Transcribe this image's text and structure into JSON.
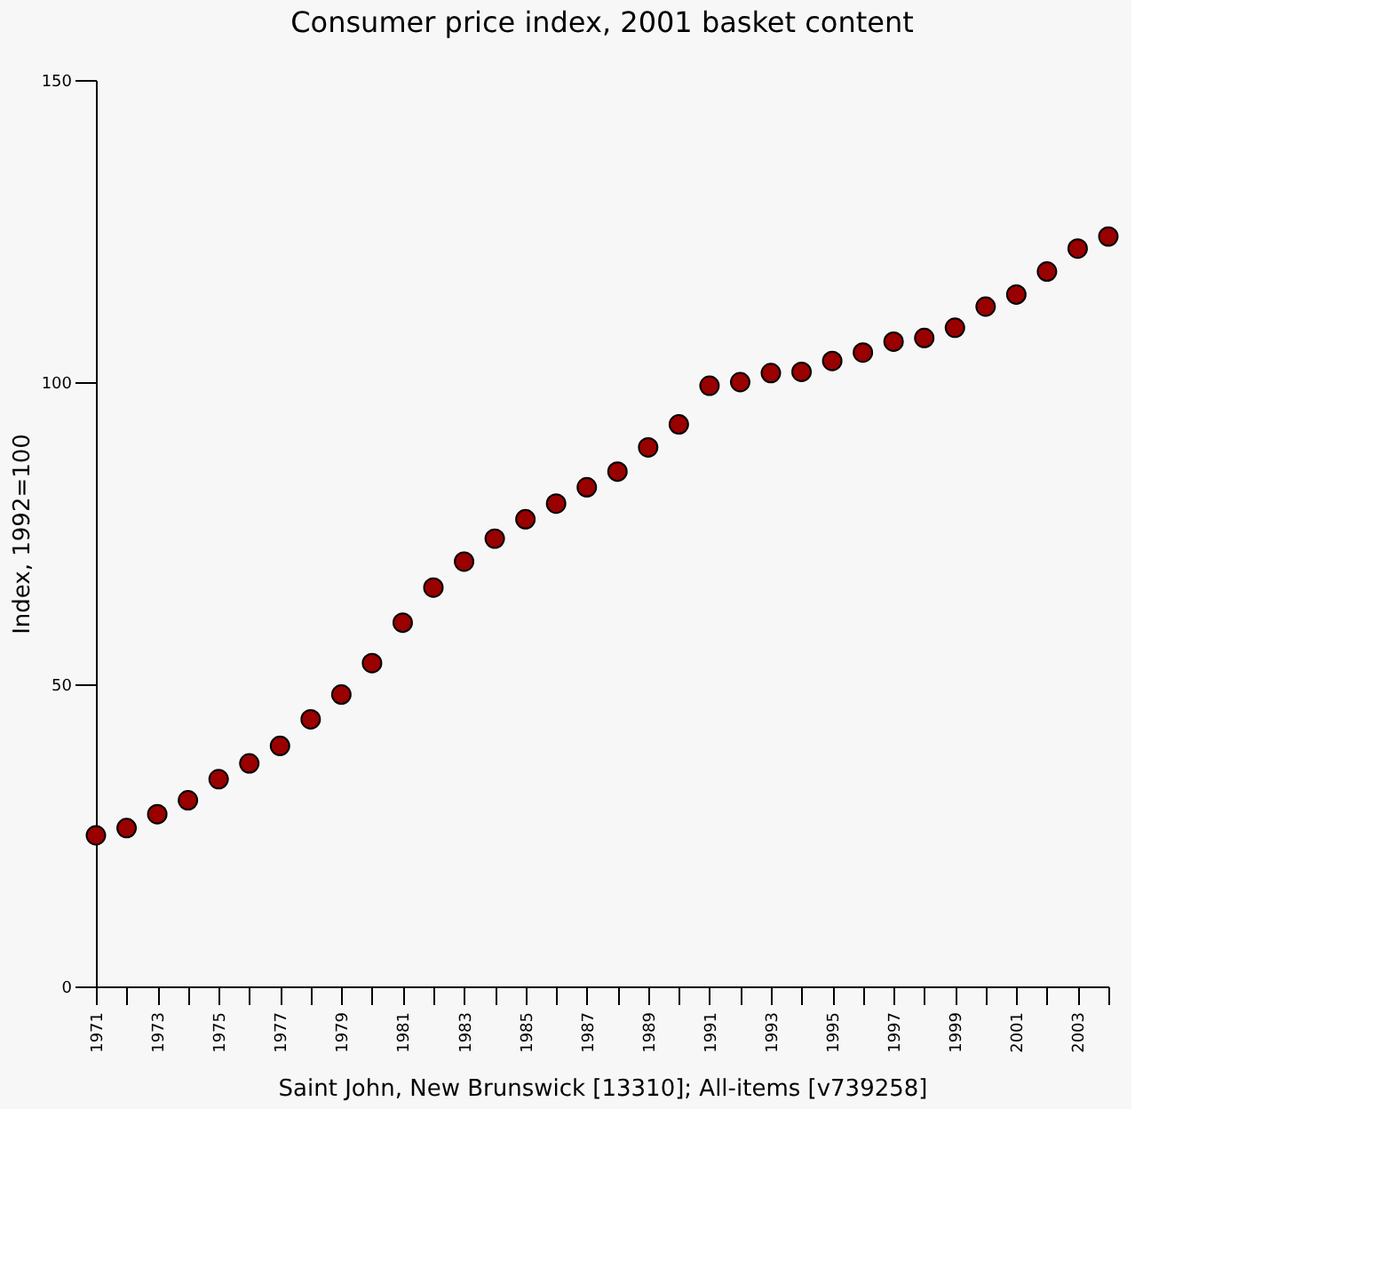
{
  "chart_data": {
    "type": "scatter",
    "title": "Consumer price index, 2001 basket content",
    "xlabel": "Saint John, New Brunswick [13310]; All-items [v739258]",
    "ylabel": "Index, 1992=100",
    "categories": [
      "1971",
      null,
      "1973",
      null,
      "1975",
      null,
      "1977",
      null,
      "1979",
      null,
      "1981",
      null,
      "1983",
      null,
      "1985",
      null,
      "1987",
      null,
      "1989",
      null,
      "1991",
      null,
      "1993",
      null,
      "1995",
      null,
      "1997",
      null,
      "1999",
      null,
      "2001",
      null,
      "2003",
      null
    ],
    "series": [
      {
        "color": "#990000",
        "values": [
          25.0,
          26.2,
          28.5,
          30.8,
          34.3,
          36.9,
          39.8,
          44.2,
          48.3,
          53.5,
          60.2,
          66.0,
          70.3,
          74.1,
          77.3,
          79.9,
          82.6,
          85.2,
          89.2,
          93.0,
          99.4,
          100.0,
          101.5,
          101.7,
          103.5,
          104.9,
          106.7,
          107.3,
          109.0,
          112.5,
          114.5,
          118.3,
          122.1,
          124.1
        ]
      }
    ],
    "ylim": [
      0,
      150
    ],
    "yticks": [
      0,
      50,
      100,
      150
    ],
    "grid": false,
    "marker": "circle",
    "legend": false
  }
}
